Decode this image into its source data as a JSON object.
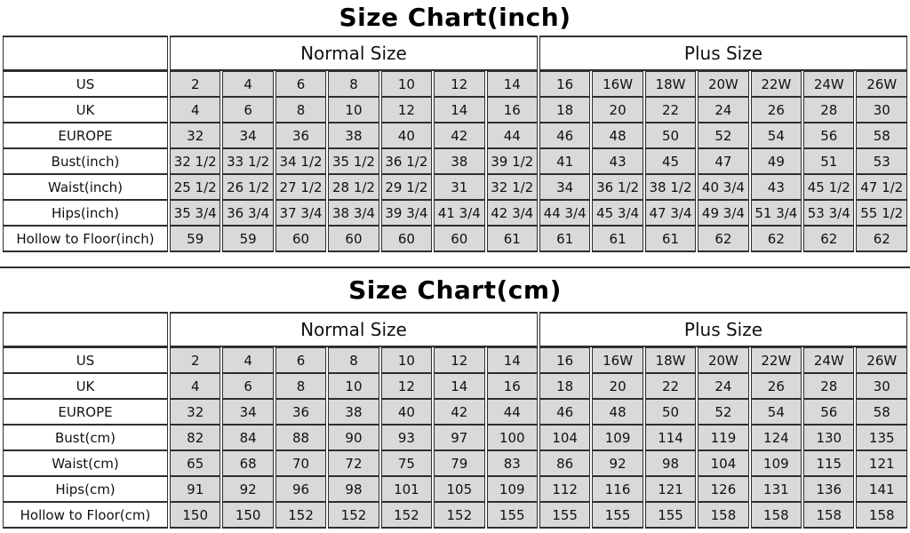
{
  "colors": {
    "cell_fill": "#d9d9d9",
    "header_fill": "#ffffff",
    "border": "#2e2e2e",
    "text": "#111111",
    "background": "#ffffff"
  },
  "chart_data": [
    {
      "type": "table",
      "title": "Size Chart(inch)",
      "col_groups": [
        {
          "label": "Normal Size",
          "span": 7
        },
        {
          "label": "Plus Size",
          "span": 7
        }
      ],
      "rows": [
        {
          "label": "US",
          "values": [
            "2",
            "4",
            "6",
            "8",
            "10",
            "12",
            "14",
            "16",
            "16W",
            "18W",
            "20W",
            "22W",
            "24W",
            "26W"
          ]
        },
        {
          "label": "UK",
          "values": [
            "4",
            "6",
            "8",
            "10",
            "12",
            "14",
            "16",
            "18",
            "20",
            "22",
            "24",
            "26",
            "28",
            "30"
          ]
        },
        {
          "label": "EUROPE",
          "values": [
            "32",
            "34",
            "36",
            "38",
            "40",
            "42",
            "44",
            "46",
            "48",
            "50",
            "52",
            "54",
            "56",
            "58"
          ]
        },
        {
          "label": "Bust(inch)",
          "values": [
            "32 1/2",
            "33 1/2",
            "34 1/2",
            "35 1/2",
            "36 1/2",
            "38",
            "39 1/2",
            "41",
            "43",
            "45",
            "47",
            "49",
            "51",
            "53"
          ]
        },
        {
          "label": "Waist(inch)",
          "values": [
            "25 1/2",
            "26 1/2",
            "27 1/2",
            "28 1/2",
            "29 1/2",
            "31",
            "32 1/2",
            "34",
            "36 1/2",
            "38 1/2",
            "40 3/4",
            "43",
            "45 1/2",
            "47 1/2"
          ]
        },
        {
          "label": "Hips(inch)",
          "values": [
            "35 3/4",
            "36 3/4",
            "37 3/4",
            "38 3/4",
            "39 3/4",
            "41 3/4",
            "42 3/4",
            "44 3/4",
            "45 3/4",
            "47 3/4",
            "49 3/4",
            "51 3/4",
            "53 3/4",
            "55 1/2"
          ]
        },
        {
          "label": "Hollow to Floor(inch)",
          "values": [
            "59",
            "59",
            "60",
            "60",
            "60",
            "60",
            "61",
            "61",
            "61",
            "61",
            "62",
            "62",
            "62",
            "62"
          ]
        }
      ]
    },
    {
      "type": "table",
      "title": "Size Chart(cm)",
      "col_groups": [
        {
          "label": "Normal Size",
          "span": 7
        },
        {
          "label": "Plus Size",
          "span": 7
        }
      ],
      "rows": [
        {
          "label": "US",
          "values": [
            "2",
            "4",
            "6",
            "8",
            "10",
            "12",
            "14",
            "16",
            "16W",
            "18W",
            "20W",
            "22W",
            "24W",
            "26W"
          ]
        },
        {
          "label": "UK",
          "values": [
            "4",
            "6",
            "8",
            "10",
            "12",
            "14",
            "16",
            "18",
            "20",
            "22",
            "24",
            "26",
            "28",
            "30"
          ]
        },
        {
          "label": "EUROPE",
          "values": [
            "32",
            "34",
            "36",
            "38",
            "40",
            "42",
            "44",
            "46",
            "48",
            "50",
            "52",
            "54",
            "56",
            "58"
          ]
        },
        {
          "label": "Bust(cm)",
          "values": [
            "82",
            "84",
            "88",
            "90",
            "93",
            "97",
            "100",
            "104",
            "109",
            "114",
            "119",
            "124",
            "130",
            "135"
          ]
        },
        {
          "label": "Waist(cm)",
          "values": [
            "65",
            "68",
            "70",
            "72",
            "75",
            "79",
            "83",
            "86",
            "92",
            "98",
            "104",
            "109",
            "115",
            "121"
          ]
        },
        {
          "label": "Hips(cm)",
          "values": [
            "91",
            "92",
            "96",
            "98",
            "101",
            "105",
            "109",
            "112",
            "116",
            "121",
            "126",
            "131",
            "136",
            "141"
          ]
        },
        {
          "label": "Hollow to Floor(cm)",
          "values": [
            "150",
            "150",
            "152",
            "152",
            "152",
            "152",
            "155",
            "155",
            "155",
            "155",
            "158",
            "158",
            "158",
            "158"
          ]
        }
      ]
    }
  ]
}
